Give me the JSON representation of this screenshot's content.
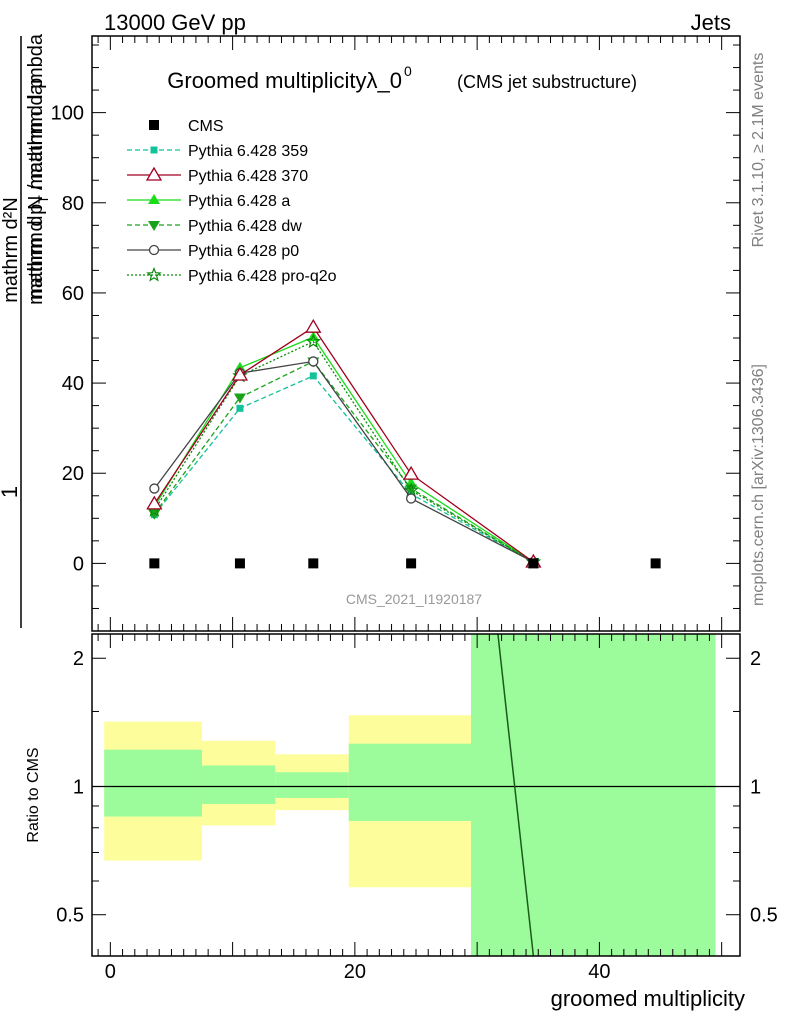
{
  "header": {
    "energy_label": "13000 GeV pp",
    "category_label": "Jets"
  },
  "side_notes": {
    "rivet": "Rivet 3.1.10, ≥ 2.1M events",
    "mcplots": "mcplots.cern.ch [arXiv:1306.3436]"
  },
  "chart_data": [
    {
      "type": "line",
      "title_main": "Groomed multiplicityλ_0",
      "title_sup": "0",
      "title_sub": "(CMS jet substructure)",
      "ylabel_top": "1",
      "ylabel_num": "mathrm d²N",
      "ylabel_den": "mathrm d N / mathrm d p",
      "ylabel_den_tail": "mathrm d p",
      "ylabel_t": "T",
      "ylabel_den_end": " mathrm d lambda",
      "ylabel_mid": "mathrm d p",
      "ylabel_mid2": " mathrm d lambda",
      "analysis_tag": "CMS_2021_I1920187",
      "xlim": [
        -1.5,
        51.5
      ],
      "ylim": [
        -15,
        117
      ],
      "y_ticks": [
        0,
        20,
        40,
        60,
        80,
        100
      ],
      "grid": false,
      "legend_position": "top-left",
      "series": [
        {
          "name": "CMS",
          "color": "#000000",
          "marker": "square",
          "line": "none",
          "x": [
            3.6,
            10.6,
            16.6,
            24.6,
            34.6,
            44.6
          ],
          "y": [
            0,
            0,
            0,
            0,
            0,
            0
          ]
        },
        {
          "name": "Pythia 6.428 359",
          "color": "#13c19a",
          "marker": "square-small",
          "line": "dashed",
          "x": [
            3.6,
            10.6,
            16.6,
            24.6,
            34.6
          ],
          "y": [
            10.8,
            34.4,
            41.6,
            15.4,
            0.3
          ]
        },
        {
          "name": "Pythia 6.428 370",
          "color": "#a00020",
          "marker": "triangle-open",
          "line": "solid",
          "x": [
            3.6,
            10.6,
            16.6,
            24.6,
            34.6
          ],
          "y": [
            13.2,
            41.8,
            52.4,
            19.8,
            0.3
          ]
        },
        {
          "name": "Pythia 6.428 a",
          "color": "#1adc1a",
          "marker": "triangle-filled",
          "line": "solid",
          "x": [
            3.6,
            10.6,
            16.6,
            24.6,
            34.6
          ],
          "y": [
            12.6,
            43.4,
            50.2,
            17.8,
            0.3
          ]
        },
        {
          "name": "Pythia 6.428 dw",
          "color": "#1aa31a",
          "marker": "triangle-down",
          "line": "dashed",
          "x": [
            3.6,
            10.6,
            16.6,
            24.6,
            34.6
          ],
          "y": [
            11.0,
            36.8,
            44.8,
            16.6,
            0.3
          ]
        },
        {
          "name": "Pythia 6.428 p0",
          "color": "#444444",
          "marker": "circle-open",
          "line": "solid",
          "x": [
            3.6,
            10.6,
            16.6,
            24.6,
            34.6
          ],
          "y": [
            16.6,
            42.2,
            44.8,
            14.4,
            0.3
          ]
        },
        {
          "name": "Pythia 6.428 pro-q2o",
          "color": "#0b8a0b",
          "marker": "star",
          "line": "dotted",
          "x": [
            3.6,
            10.6,
            16.6,
            24.6,
            34.6
          ],
          "y": [
            11.8,
            41.6,
            49.2,
            16.2,
            0.3
          ]
        }
      ]
    },
    {
      "type": "area",
      "ylabel": "Ratio to CMS",
      "xlabel": "groomed multiplicity",
      "scale": "log",
      "xlim": [
        -1.5,
        51.5
      ],
      "ylim": [
        0.4,
        2.28
      ],
      "y_ticks": [
        0.5,
        1,
        2
      ],
      "y_tick_labels": [
        "0.5",
        "1",
        "2"
      ],
      "x_ticks": [
        0,
        20,
        40
      ],
      "reference_line": 1,
      "bins": [
        {
          "x": [
            -0.5,
            7.5
          ],
          "green": [
            0.85,
            1.22
          ],
          "yellow": [
            0.67,
            1.42
          ]
        },
        {
          "x": [
            7.5,
            13.5
          ],
          "green": [
            0.91,
            1.12
          ],
          "yellow": [
            0.81,
            1.28
          ]
        },
        {
          "x": [
            13.5,
            19.5
          ],
          "green": [
            0.94,
            1.08
          ],
          "yellow": [
            0.88,
            1.19
          ]
        },
        {
          "x": [
            19.5,
            29.5
          ],
          "green": [
            0.83,
            1.26
          ],
          "yellow": [
            0.58,
            1.47
          ]
        },
        {
          "x": [
            29.5,
            49.5
          ],
          "green": [
            0.4,
            2.28
          ],
          "yellow": [
            0.4,
            2.28
          ]
        }
      ],
      "ratio_line": {
        "x": [
          31.7,
          34.6
        ],
        "y": [
          2.28,
          0.4
        ],
        "color": "#1a5c1a"
      },
      "colors": {
        "green": "#9cfc9c",
        "yellow": "#fdfd9c"
      }
    }
  ]
}
